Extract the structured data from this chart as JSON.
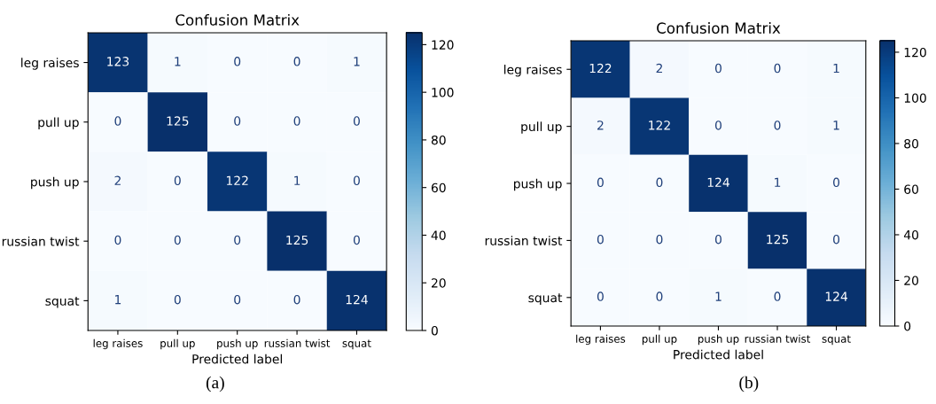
{
  "chart_data": [
    {
      "type": "heatmap",
      "title": "Confusion Matrix",
      "xlabel": "Predicted label",
      "categories": [
        "leg raises",
        "pull up",
        "push up",
        "russian twist",
        "squat"
      ],
      "y_categories": [
        "leg raises",
        "pull up",
        "push up",
        "russian twist",
        "squat"
      ],
      "cells": [
        [
          123,
          1,
          0,
          0,
          1
        ],
        [
          0,
          125,
          0,
          0,
          0
        ],
        [
          2,
          0,
          122,
          1,
          0
        ],
        [
          0,
          0,
          0,
          125,
          0
        ],
        [
          1,
          0,
          0,
          0,
          124
        ]
      ],
      "clim": [
        0,
        125
      ],
      "cticks": [
        0,
        20,
        40,
        60,
        80,
        100,
        120
      ],
      "data_labels": true,
      "annotations": [
        "(a)"
      ]
    },
    {
      "type": "heatmap",
      "title": "Confusion Matrix",
      "xlabel": "Predicted label",
      "categories": [
        "leg raises",
        "pull up",
        "push up",
        "russian twist",
        "squat"
      ],
      "y_categories": [
        "leg raises",
        "pull up",
        "push up",
        "russian twist",
        "squat"
      ],
      "cells": [
        [
          122,
          2,
          0,
          0,
          1
        ],
        [
          2,
          122,
          0,
          0,
          1
        ],
        [
          0,
          0,
          124,
          1,
          0
        ],
        [
          0,
          0,
          0,
          125,
          0
        ],
        [
          0,
          0,
          1,
          0,
          124
        ]
      ],
      "clim": [
        0,
        125
      ],
      "cticks": [
        0,
        20,
        40,
        60,
        80,
        100,
        120
      ],
      "data_labels": true,
      "annotations": [
        "(b)"
      ]
    }
  ]
}
